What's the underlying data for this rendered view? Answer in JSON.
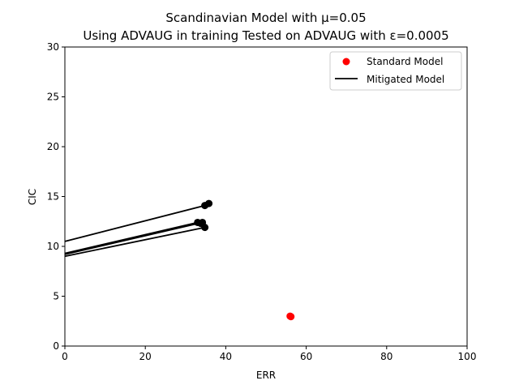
{
  "chart_data": {
    "type": "scatter",
    "title": "Scandinavian Model with μ=0.05",
    "subtitle": "Using ADVAUG in training Tested on ADVAUG with ε=0.0005",
    "xlabel": "ERR",
    "ylabel": "CIC",
    "xlim": [
      0,
      100
    ],
    "ylim": [
      0,
      30
    ],
    "xticks": [
      "0",
      "20",
      "40",
      "60",
      "80",
      "100"
    ],
    "yticks": [
      "0",
      "5",
      "10",
      "15",
      "20",
      "25",
      "30"
    ],
    "grid": false,
    "legend_position": "top-right",
    "legend": [
      {
        "label": "Standard Model",
        "marker": "dot",
        "color": "#ff0000"
      },
      {
        "label": "Mitigated Model",
        "marker": "line",
        "color": "#000000"
      }
    ],
    "series": [
      {
        "name": "Standard Model",
        "kind": "points",
        "color": "#ff0000",
        "points": [
          [
            56.0,
            3.0
          ],
          [
            56.2,
            2.95
          ]
        ]
      },
      {
        "name": "Mitigated Model",
        "kind": "points",
        "color": "#000000",
        "points": [
          [
            34.8,
            14.1
          ],
          [
            35.8,
            14.3
          ],
          [
            33.0,
            12.4
          ],
          [
            33.8,
            12.3
          ],
          [
            34.2,
            12.4
          ],
          [
            34.8,
            11.9
          ]
        ]
      },
      {
        "name": "Mitigated Model",
        "kind": "lines",
        "color": "#000000",
        "lines": [
          [
            [
              0,
              10.5
            ],
            [
              34.8,
              14.1
            ]
          ],
          [
            [
              0,
              9.3
            ],
            [
              33.0,
              12.4
            ]
          ],
          [
            [
              0,
              9.2
            ],
            [
              34.2,
              12.4
            ]
          ],
          [
            [
              0,
              9.0
            ],
            [
              34.8,
              11.9
            ]
          ]
        ]
      }
    ]
  }
}
